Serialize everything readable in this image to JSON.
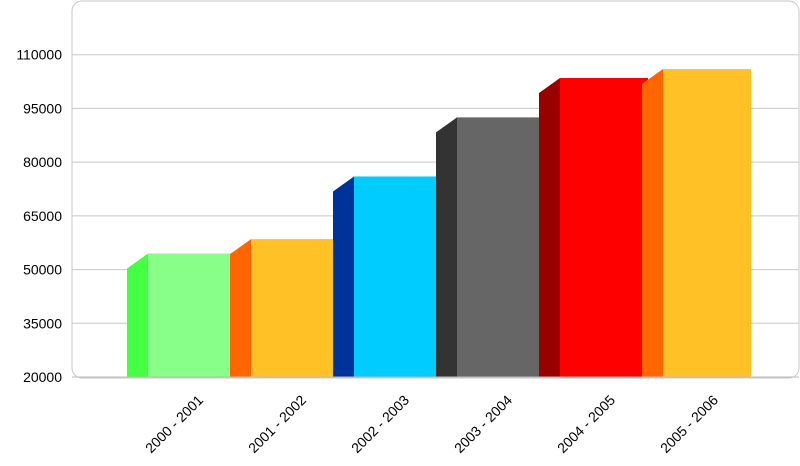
{
  "chart_data": {
    "type": "bar",
    "title": "",
    "xlabel": "",
    "ylabel": "",
    "categories": [
      "2000 - 2001",
      "2001 - 2002",
      "2002 - 2003",
      "2003 - 2004",
      "2004 - 2005",
      "2005 - 2006"
    ],
    "values": [
      54500,
      58500,
      76000,
      92500,
      103500,
      106000
    ],
    "ylim": [
      20000,
      125000
    ],
    "yticks": [
      20000,
      35000,
      50000,
      65000,
      80000,
      95000,
      110000
    ],
    "ytick_labels": [
      "20000",
      "35000",
      "50000",
      "65000",
      "80000",
      "95000",
      "110000"
    ],
    "grid": true,
    "legend": "none",
    "bar_colors": [
      {
        "front": "#88ff88",
        "side": "#44ff44"
      },
      {
        "front": "#ffc125",
        "side": "#ff6600"
      },
      {
        "front": "#00ccff",
        "side": "#003399"
      },
      {
        "front": "#666666",
        "side": "#333333"
      },
      {
        "front": "#ff0000",
        "side": "#990000"
      },
      {
        "front": "#ffc125",
        "side": "#ff6600"
      }
    ]
  }
}
